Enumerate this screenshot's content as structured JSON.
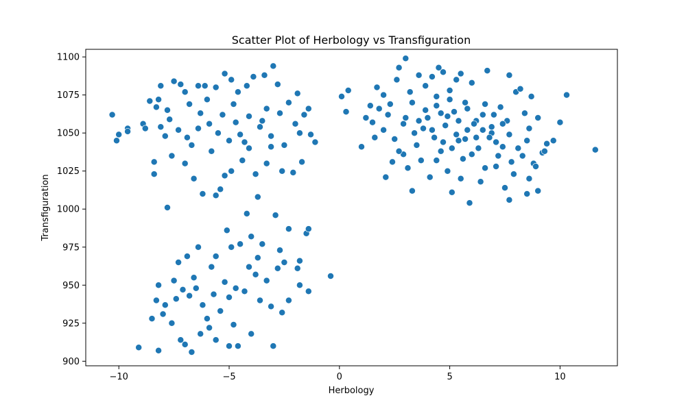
{
  "chart_data": {
    "type": "scatter",
    "title": "Scatter Plot of Herbology vs Transfiguration",
    "xlabel": "Herbology",
    "ylabel": "Transfiguration",
    "xlim": [
      -11.5,
      12.6
    ],
    "ylim": [
      897,
      1105
    ],
    "xticks": [
      -10,
      -5,
      0,
      5,
      10
    ],
    "yticks": [
      900,
      925,
      950,
      975,
      1000,
      1025,
      1050,
      1075,
      1100
    ],
    "xtick_labels": [
      "−10",
      "−5",
      "0",
      "5",
      "10"
    ],
    "ytick_labels": [
      "900",
      "925",
      "950",
      "975",
      "1000",
      "1025",
      "1050",
      "1075",
      "1100"
    ],
    "grid": false,
    "marker_color": "#1f77b4",
    "marker_edge": "#ffffff",
    "series": [
      {
        "values": [
          [
            -10.3,
            1062
          ],
          [
            -10.0,
            1049
          ],
          [
            -10.1,
            1045
          ],
          [
            -9.6,
            1053
          ],
          [
            -9.6,
            1051
          ],
          [
            -8.9,
            1056
          ],
          [
            -8.8,
            1053
          ],
          [
            -8.6,
            1071
          ],
          [
            -8.3,
            1067
          ],
          [
            -8.2,
            1072
          ],
          [
            -8.1,
            1081
          ],
          [
            -7.9,
            1048
          ],
          [
            -7.8,
            1065
          ],
          [
            -7.5,
            1084
          ],
          [
            -7.2,
            1082
          ],
          [
            -7.0,
            1077
          ],
          [
            -6.8,
            1069
          ],
          [
            -6.4,
            1081
          ],
          [
            -6.1,
            1081
          ],
          [
            -5.6,
            1080
          ],
          [
            -5.2,
            1089
          ],
          [
            -4.9,
            1085
          ],
          [
            -4.6,
            1077
          ],
          [
            -4.2,
            1081
          ],
          [
            -3.9,
            1087
          ],
          [
            -3.4,
            1088
          ],
          [
            -3.0,
            1094
          ],
          [
            -2.8,
            1082
          ],
          [
            -2.3,
            1070
          ],
          [
            -1.9,
            1076
          ],
          [
            -1.8,
            1050
          ],
          [
            -1.6,
            1062
          ],
          [
            -1.4,
            1066
          ],
          [
            -1.3,
            1049
          ],
          [
            -1.1,
            1044
          ],
          [
            -1.7,
            1031
          ],
          [
            -2.1,
            1024
          ],
          [
            -2.6,
            1025
          ],
          [
            -3.1,
            1041
          ],
          [
            -3.3,
            1030
          ],
          [
            -3.8,
            1023
          ],
          [
            -4.1,
            1040
          ],
          [
            -4.4,
            1032
          ],
          [
            -4.9,
            1025
          ],
          [
            -5.2,
            1022
          ],
          [
            -5.6,
            1009
          ],
          [
            -6.2,
            1010
          ],
          [
            -6.6,
            1020
          ],
          [
            -7.0,
            1030
          ],
          [
            -7.6,
            1035
          ],
          [
            -8.1,
            1054
          ],
          [
            -8.4,
            1031
          ],
          [
            -8.4,
            1023
          ],
          [
            -6.9,
            1047
          ],
          [
            -6.4,
            1053
          ],
          [
            -5.9,
            1056
          ],
          [
            -5.3,
            1062
          ],
          [
            -4.7,
            1057
          ],
          [
            -4.1,
            1061
          ],
          [
            -3.6,
            1054
          ],
          [
            -3.1,
            1048
          ],
          [
            -2.5,
            1042
          ],
          [
            -2.0,
            1056
          ],
          [
            -5.0,
            1045
          ],
          [
            -4.5,
            1049
          ],
          [
            -5.8,
            1038
          ],
          [
            -6.7,
            1042
          ],
          [
            -7.3,
            1052
          ],
          [
            -3.7,
            1008
          ],
          [
            -5.4,
            1013
          ],
          [
            -6.0,
            1072
          ],
          [
            -4.8,
            1069
          ],
          [
            -3.3,
            1066
          ],
          [
            -7.7,
            1059
          ],
          [
            -6.3,
            1063
          ],
          [
            -5.5,
            1050
          ],
          [
            -4.3,
            1044
          ],
          [
            -3.5,
            1058
          ],
          [
            -2.7,
            1063
          ],
          [
            -7.8,
            1001
          ],
          [
            -9.1,
            909
          ],
          [
            -8.2,
            907
          ],
          [
            -8.5,
            928
          ],
          [
            -8.3,
            940
          ],
          [
            -7.9,
            937
          ],
          [
            -7.6,
            925
          ],
          [
            -7.2,
            914
          ],
          [
            -7.0,
            911
          ],
          [
            -6.7,
            906
          ],
          [
            -6.3,
            918
          ],
          [
            -5.9,
            922
          ],
          [
            -5.6,
            914
          ],
          [
            -5.0,
            910
          ],
          [
            -4.6,
            910
          ],
          [
            -4.0,
            918
          ],
          [
            -3.0,
            910
          ],
          [
            -2.6,
            932
          ],
          [
            -2.3,
            940
          ],
          [
            -1.8,
            950
          ],
          [
            -1.4,
            946
          ],
          [
            -1.9,
            961
          ],
          [
            -1.8,
            966
          ],
          [
            -1.5,
            984
          ],
          [
            -1.4,
            987
          ],
          [
            -2.3,
            987
          ],
          [
            -2.9,
            996
          ],
          [
            -4.2,
            997
          ],
          [
            -3.5,
            977
          ],
          [
            -4.0,
            982
          ],
          [
            -4.5,
            977
          ],
          [
            -5.1,
            986
          ],
          [
            -4.9,
            975
          ],
          [
            -5.6,
            969
          ],
          [
            -6.4,
            975
          ],
          [
            -6.9,
            969
          ],
          [
            -7.3,
            965
          ],
          [
            -7.5,
            953
          ],
          [
            -8.2,
            950
          ],
          [
            -8.0,
            931
          ],
          [
            -7.4,
            941
          ],
          [
            -6.8,
            943
          ],
          [
            -6.2,
            937
          ],
          [
            -5.7,
            944
          ],
          [
            -5.2,
            952
          ],
          [
            -4.7,
            948
          ],
          [
            -4.3,
            946
          ],
          [
            -3.8,
            957
          ],
          [
            -3.3,
            953
          ],
          [
            -2.8,
            961
          ],
          [
            -2.5,
            965
          ],
          [
            -6.0,
            928
          ],
          [
            -5.4,
            933
          ],
          [
            -4.8,
            924
          ],
          [
            -3.6,
            940
          ],
          [
            -3.1,
            936
          ],
          [
            -0.4,
            956
          ],
          [
            -6.6,
            955
          ],
          [
            -7.1,
            947
          ],
          [
            -4.1,
            962
          ],
          [
            -3.7,
            968
          ],
          [
            -2.7,
            973
          ],
          [
            -5.8,
            962
          ],
          [
            -6.5,
            948
          ],
          [
            -5.0,
            942
          ],
          [
            0.1,
            1074
          ],
          [
            0.3,
            1064
          ],
          [
            0.4,
            1078
          ],
          [
            1.0,
            1041
          ],
          [
            1.2,
            1060
          ],
          [
            1.4,
            1068
          ],
          [
            1.6,
            1047
          ],
          [
            1.7,
            1080
          ],
          [
            2.0,
            1075
          ],
          [
            2.1,
            1021
          ],
          [
            2.4,
            1031
          ],
          [
            2.6,
            1085
          ],
          [
            2.7,
            1093
          ],
          [
            2.9,
            1036
          ],
          [
            3.0,
            1099
          ],
          [
            3.2,
            1077
          ],
          [
            3.3,
            1012
          ],
          [
            3.6,
            1088
          ],
          [
            3.9,
            1081
          ],
          [
            4.2,
            1087
          ],
          [
            4.4,
            1068
          ],
          [
            4.5,
            1093
          ],
          [
            4.7,
            1090
          ],
          [
            4.9,
            1061
          ],
          [
            5.0,
            1078
          ],
          [
            5.1,
            1011
          ],
          [
            5.3,
            1085
          ],
          [
            5.4,
            1045
          ],
          [
            5.5,
            1089
          ],
          [
            5.7,
            1070
          ],
          [
            5.9,
            1004
          ],
          [
            6.0,
            1083
          ],
          [
            6.2,
            1058
          ],
          [
            6.5,
            1062
          ],
          [
            6.7,
            1091
          ],
          [
            6.9,
            1050
          ],
          [
            7.1,
            1044
          ],
          [
            7.3,
            1067
          ],
          [
            7.5,
            1014
          ],
          [
            7.7,
            1006
          ],
          [
            7.7,
            1088
          ],
          [
            7.8,
            1031
          ],
          [
            8.0,
            1077
          ],
          [
            8.2,
            1079
          ],
          [
            8.4,
            1063
          ],
          [
            8.5,
            1010
          ],
          [
            8.7,
            1074
          ],
          [
            8.8,
            1030
          ],
          [
            9.0,
            1060
          ],
          [
            9.2,
            1037
          ],
          [
            9.4,
            1043
          ],
          [
            9.7,
            1045
          ],
          [
            10.0,
            1057
          ],
          [
            10.3,
            1075
          ],
          [
            11.6,
            1039
          ],
          [
            9.0,
            1012
          ],
          [
            8.6,
            1053
          ],
          [
            8.1,
            1040
          ],
          [
            7.6,
            1058
          ],
          [
            7.2,
            1035
          ],
          [
            6.8,
            1047
          ],
          [
            6.3,
            1040
          ],
          [
            5.8,
            1052
          ],
          [
            5.3,
            1049
          ],
          [
            4.8,
            1055
          ],
          [
            4.3,
            1047
          ],
          [
            3.8,
            1053
          ],
          [
            3.4,
            1050
          ],
          [
            2.9,
            1056
          ],
          [
            2.5,
            1046
          ],
          [
            2.2,
            1062
          ],
          [
            3.5,
            1042
          ],
          [
            4.0,
            1060
          ],
          [
            4.6,
            1038
          ],
          [
            5.2,
            1064
          ],
          [
            5.6,
            1033
          ],
          [
            6.1,
            1056
          ],
          [
            6.6,
            1027
          ],
          [
            7.0,
            1062
          ],
          [
            7.4,
            1041
          ],
          [
            3.1,
            1027
          ],
          [
            3.7,
            1032
          ],
          [
            4.1,
            1021
          ],
          [
            4.9,
            1025
          ],
          [
            5.5,
            1020
          ],
          [
            6.4,
            1018
          ],
          [
            7.9,
            1023
          ],
          [
            8.3,
            1035
          ],
          [
            3.3,
            1070
          ],
          [
            4.4,
            1074
          ],
          [
            5.0,
            1072
          ],
          [
            5.8,
            1066
          ],
          [
            6.6,
            1069
          ],
          [
            7.4,
            1056
          ],
          [
            2.0,
            1052
          ],
          [
            1.5,
            1057
          ],
          [
            2.7,
            1038
          ],
          [
            3.9,
            1065
          ],
          [
            4.7,
            1044
          ],
          [
            5.4,
            1058
          ],
          [
            6.2,
            1047
          ],
          [
            6.9,
            1054
          ],
          [
            7.7,
            1049
          ],
          [
            8.5,
            1045
          ],
          [
            4.2,
            1052
          ],
          [
            3.6,
            1058
          ],
          [
            5.1,
            1040
          ],
          [
            5.7,
            1046
          ],
          [
            6.5,
            1052
          ],
          [
            4.6,
            1063
          ],
          [
            2.3,
            1069
          ],
          [
            1.8,
            1066
          ],
          [
            3.0,
            1060
          ],
          [
            7.1,
            1028
          ],
          [
            6.0,
            1036
          ],
          [
            4.4,
            1032
          ],
          [
            8.9,
            1028
          ],
          [
            9.3,
            1038
          ],
          [
            8.6,
            1020
          ]
        ]
      }
    ]
  }
}
